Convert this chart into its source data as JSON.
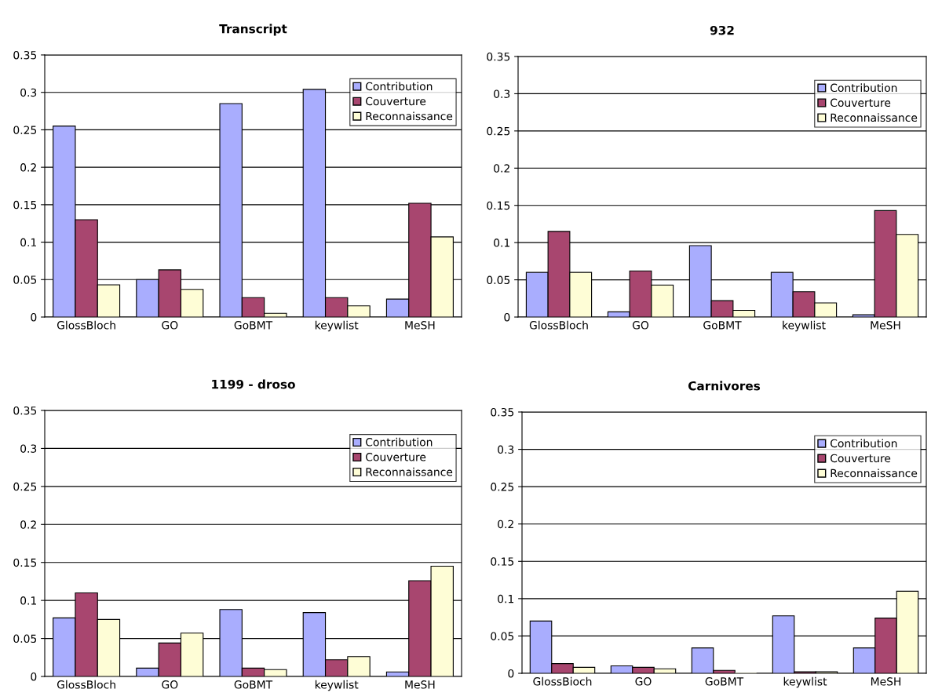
{
  "chart_data": [
    {
      "type": "bar",
      "title": "Transcript",
      "categories": [
        "GlossBloch",
        "GO",
        "GoBMT",
        "keywlist",
        "MeSH"
      ],
      "ylim": [
        0,
        0.35
      ],
      "yticks": [
        0,
        0.05,
        0.1,
        0.15,
        0.2,
        0.25,
        0.3,
        0.35
      ],
      "grid": "y",
      "legend": "top right",
      "series": [
        {
          "name": "Contribution",
          "color": "#a9adfe",
          "values": [
            0.255,
            0.05,
            0.285,
            0.304,
            0.024
          ]
        },
        {
          "name": "Couverture",
          "color": "#a8466f",
          "values": [
            0.13,
            0.063,
            0.026,
            0.026,
            0.152
          ]
        },
        {
          "name": "Reconnaissance",
          "color": "#fefdd6",
          "values": [
            0.043,
            0.037,
            0.005,
            0.015,
            0.107
          ]
        }
      ]
    },
    {
      "type": "bar",
      "title": "932",
      "categories": [
        "GlossBloch",
        "GO",
        "GoBMT",
        "keywlist",
        "MeSH"
      ],
      "ylim": [
        0,
        0.35
      ],
      "yticks": [
        0,
        0.05,
        0.1,
        0.15,
        0.2,
        0.25,
        0.3,
        0.35
      ],
      "grid": "y",
      "legend": "top right",
      "series": [
        {
          "name": "Contribution",
          "color": "#a9adfe",
          "values": [
            0.06,
            0.007,
            0.096,
            0.06,
            0.003
          ]
        },
        {
          "name": "Couverture",
          "color": "#a8466f",
          "values": [
            0.115,
            0.062,
            0.022,
            0.034,
            0.143
          ]
        },
        {
          "name": "Reconnaissance",
          "color": "#fefdd6",
          "values": [
            0.06,
            0.043,
            0.009,
            0.019,
            0.111
          ]
        }
      ]
    },
    {
      "type": "bar",
      "title": "1199 - droso",
      "categories": [
        "GlossBloch",
        "GO",
        "GoBMT",
        "keywlist",
        "MeSH"
      ],
      "ylim": [
        0,
        0.35
      ],
      "yticks": [
        0,
        0.05,
        0.1,
        0.15,
        0.2,
        0.25,
        0.3,
        0.35
      ],
      "grid": "y",
      "legend": "top right",
      "series": [
        {
          "name": "Contribution",
          "color": "#a9adfe",
          "values": [
            0.077,
            0.011,
            0.088,
            0.084,
            0.006
          ]
        },
        {
          "name": "Couverture",
          "color": "#a8466f",
          "values": [
            0.11,
            0.044,
            0.011,
            0.022,
            0.126
          ]
        },
        {
          "name": "Reconnaissance",
          "color": "#fefdd6",
          "values": [
            0.075,
            0.057,
            0.009,
            0.026,
            0.145
          ]
        }
      ]
    },
    {
      "type": "bar",
      "title": "Carnivores",
      "categories": [
        "GlossBioch",
        "GO",
        "GoBMT",
        "keywlist",
        "MeSH"
      ],
      "ylim": [
        0,
        0.35
      ],
      "yticks": [
        0,
        0.05,
        0.1,
        0.15,
        0.2,
        0.25,
        0.3,
        0.35
      ],
      "grid": "y",
      "legend": "top right",
      "series": [
        {
          "name": "Contribution",
          "color": "#a9adfe",
          "values": [
            0.07,
            0.01,
            0.034,
            0.077,
            0.034
          ]
        },
        {
          "name": "Couverture",
          "color": "#a8466f",
          "values": [
            0.013,
            0.008,
            0.004,
            0.002,
            0.074
          ]
        },
        {
          "name": "Reconnaissance",
          "color": "#fefdd6",
          "values": [
            0.008,
            0.006,
            0,
            0.002,
            0.11
          ]
        }
      ]
    }
  ]
}
